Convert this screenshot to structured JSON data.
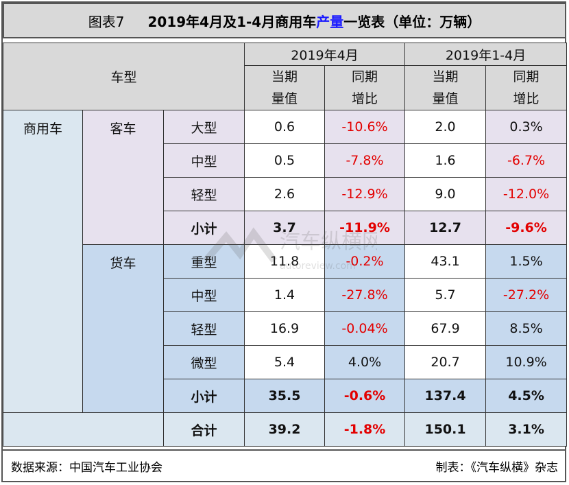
{
  "title": {
    "label": "图表7",
    "text_before": "2019年4月及1-4月商用车",
    "highlight": "产量",
    "text_after": "一览表（单位：万辆）"
  },
  "table": {
    "vehicle_type_header": "车型",
    "period_month": "2019年4月",
    "period_ytd": "2019年1-4月",
    "col_volume": "当期\n量值",
    "col_yoy": "同期\n增比",
    "category": "商用车",
    "groups": [
      {
        "name": "客车",
        "rows": [
          {
            "type": "大型",
            "m_val": "0.6",
            "m_yoy": "-10.6%",
            "y_val": "2.0",
            "y_yoy": "0.3%"
          },
          {
            "type": "中型",
            "m_val": "0.5",
            "m_yoy": "-7.8%",
            "y_val": "1.6",
            "y_yoy": "-6.7%"
          },
          {
            "type": "轻型",
            "m_val": "2.6",
            "m_yoy": "-12.9%",
            "y_val": "9.0",
            "y_yoy": "-12.0%"
          }
        ],
        "subtotal": {
          "type": "小计",
          "m_val": "3.7",
          "m_yoy": "-11.9%",
          "y_val": "12.7",
          "y_yoy": "-9.6%"
        }
      },
      {
        "name": "货车",
        "rows": [
          {
            "type": "重型",
            "m_val": "11.8",
            "m_yoy": "-0.2%",
            "y_val": "43.1",
            "y_yoy": "1.5%"
          },
          {
            "type": "中型",
            "m_val": "1.4",
            "m_yoy": "-27.8%",
            "y_val": "5.7",
            "y_yoy": "-27.2%"
          },
          {
            "type": "轻型",
            "m_val": "16.9",
            "m_yoy": "-0.04%",
            "y_val": "67.9",
            "y_yoy": "8.5%"
          },
          {
            "type": "微型",
            "m_val": "5.4",
            "m_yoy": "4.0%",
            "y_val": "20.7",
            "y_yoy": "10.9%"
          }
        ],
        "subtotal": {
          "type": "小计",
          "m_val": "35.5",
          "m_yoy": "-0.6%",
          "y_val": "137.4",
          "y_yoy": "4.5%"
        }
      }
    ],
    "total": {
      "type": "合计",
      "m_val": "39.2",
      "m_yoy": "-1.8%",
      "y_val": "150.1",
      "y_yoy": "3.1%"
    }
  },
  "footer": {
    "source": "数据来源：中国汽车工业协会",
    "made_by": "制表：《汽车纵横》杂志"
  },
  "watermark": {
    "icon": "autoreview-logo-icon",
    "text": "汽车纵横网",
    "subtext": "autoreview.com"
  },
  "colors": {
    "negative": "#e30000",
    "highlight": "#1a1aff",
    "passenger_bg": "#e7e1ee",
    "truck_bg": "#c6d9ee"
  }
}
